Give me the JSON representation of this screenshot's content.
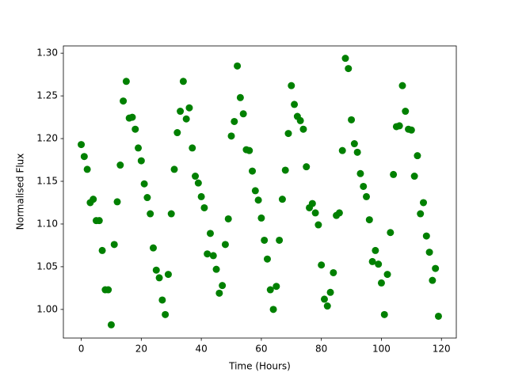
{
  "chart_data": {
    "type": "scatter",
    "xlabel": "Time (Hours)",
    "ylabel": "Normalised Flux",
    "color": "#008000",
    "x": [
      0,
      1,
      2,
      3,
      4,
      5,
      6,
      7,
      8,
      9,
      10,
      11,
      12,
      13,
      14,
      15,
      16,
      17,
      18,
      19,
      20,
      21,
      22,
      23,
      24,
      25,
      26,
      27,
      28,
      29,
      30,
      31,
      32,
      33,
      34,
      35,
      36,
      37,
      38,
      39,
      40,
      41,
      42,
      43,
      44,
      45,
      46,
      47,
      48,
      49,
      50,
      51,
      52,
      53,
      54,
      55,
      56,
      57,
      58,
      59,
      60,
      61,
      62,
      63,
      64,
      65,
      66,
      67,
      68,
      69,
      70,
      71,
      72,
      73,
      74,
      75,
      76,
      77,
      78,
      79,
      80,
      81,
      82,
      83,
      84,
      85,
      86,
      87,
      88,
      89,
      90,
      91,
      92,
      93,
      94,
      95,
      96,
      97,
      98,
      99,
      100,
      101,
      102,
      103,
      104,
      105,
      106,
      107,
      108,
      109,
      110,
      111,
      112,
      113,
      114,
      115,
      116,
      117,
      118,
      119
    ],
    "values": [
      1.193,
      1.179,
      1.164,
      1.125,
      1.129,
      1.104,
      1.104,
      1.069,
      1.023,
      1.023,
      0.982,
      1.076,
      1.126,
      1.169,
      1.244,
      1.267,
      1.224,
      1.225,
      1.211,
      1.189,
      1.174,
      1.147,
      1.131,
      1.112,
      1.072,
      1.046,
      1.037,
      1.011,
      0.994,
      1.041,
      1.112,
      1.164,
      1.207,
      1.232,
      1.267,
      1.223,
      1.236,
      1.189,
      1.156,
      1.148,
      1.132,
      1.119,
      1.065,
      1.089,
      1.063,
      1.047,
      1.019,
      1.028,
      1.076,
      1.106,
      1.203,
      1.22,
      1.285,
      1.248,
      1.229,
      1.187,
      1.186,
      1.162,
      1.139,
      1.128,
      1.107,
      1.081,
      1.059,
      1.023,
      1.0,
      1.027,
      1.081,
      1.129,
      1.163,
      1.206,
      1.262,
      1.24,
      1.226,
      1.221,
      1.211,
      1.167,
      1.119,
      1.124,
      1.113,
      1.099,
      1.052,
      1.012,
      1.004,
      1.02,
      1.043,
      1.11,
      1.113,
      1.186,
      1.294,
      1.282,
      1.222,
      1.194,
      1.184,
      1.159,
      1.144,
      1.132,
      1.105,
      1.056,
      1.069,
      1.053,
      1.031,
      0.994,
      1.041,
      1.09,
      1.158,
      1.214,
      1.215,
      1.262,
      1.232,
      1.211,
      1.21,
      1.156,
      1.18,
      1.112,
      1.125,
      1.086,
      1.067,
      1.034,
      1.048,
      0.992
    ],
    "xlim": [
      -5.95,
      124.95
    ],
    "xticks": [
      0,
      20,
      40,
      60,
      80,
      100,
      120
    ],
    "ylim": [
      0.9665,
      1.3085
    ],
    "yticks": [
      {
        "value": 1.0,
        "label": "1.00"
      },
      {
        "value": 1.05,
        "label": "1.05"
      },
      {
        "value": 1.1,
        "label": "1.10"
      },
      {
        "value": 1.15,
        "label": "1.15"
      },
      {
        "value": 1.2,
        "label": "1.20"
      },
      {
        "value": 1.25,
        "label": "1.25"
      },
      {
        "value": 1.3,
        "label": "1.30"
      }
    ],
    "grid": false
  }
}
